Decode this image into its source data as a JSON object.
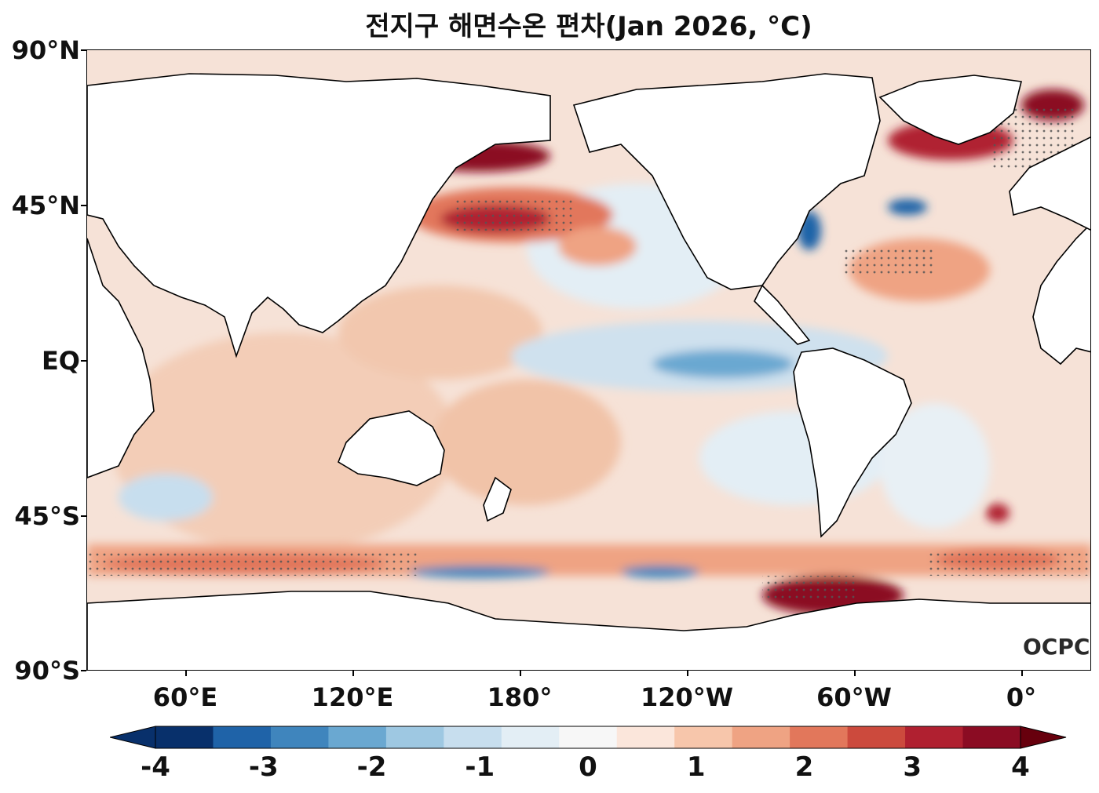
{
  "title": "전지구 해면수온 편차(Jan 2026, °C)",
  "axes": {
    "lat_labels": [
      "90°N",
      "45°N",
      "EQ",
      "45°S",
      "90°S"
    ],
    "lon_labels": [
      "60°E",
      "120°E",
      "180°",
      "120°W",
      "60°W",
      "0°"
    ]
  },
  "colorbar": {
    "ticks": [
      "-4",
      "-3",
      "-2",
      "-1",
      "0",
      "1",
      "2",
      "3",
      "4"
    ],
    "colors": [
      "#08306b",
      "#1f63a8",
      "#3f85bd",
      "#6aa8d1",
      "#9ec8e2",
      "#c7deee",
      "#e3eef5",
      "#f7f7f7",
      "#fbe6db",
      "#f7c6ab",
      "#efa383",
      "#e2775b",
      "#cc4a3d",
      "#b02030",
      "#8b0c23"
    ]
  },
  "logo": "OCPC",
  "colors": {
    "ocean_neutral": "#f4e8e1",
    "land": "#ffffff",
    "coast": "#000000"
  }
}
